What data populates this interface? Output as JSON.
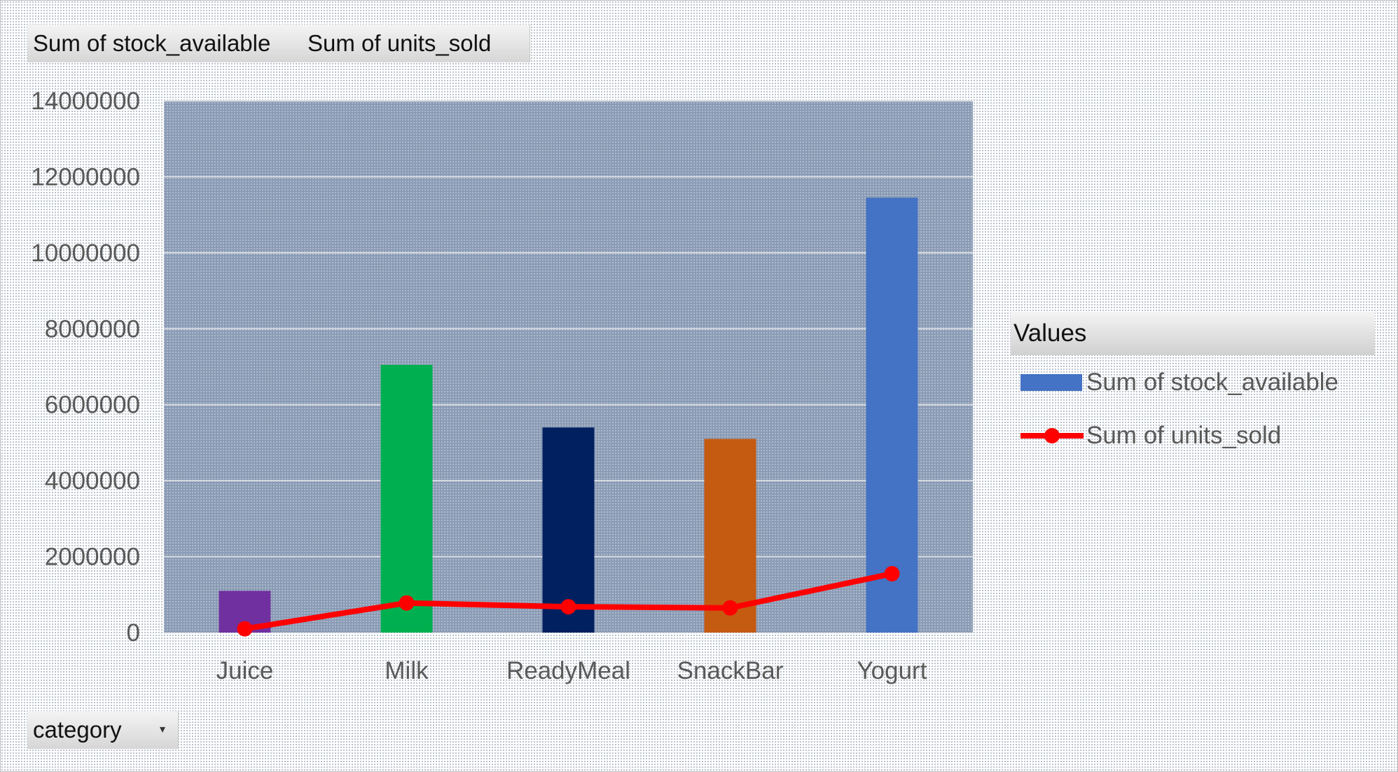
{
  "field_buttons": {
    "values_1": "Sum of stock_available",
    "values_2": "Sum of units_sold",
    "axis_field": "category",
    "dropdown_glyph": "▾"
  },
  "legend": {
    "title": "Values",
    "items": [
      "Sum of stock_available",
      "Sum of units_sold"
    ]
  },
  "colors": {
    "plot_area": "#8a9bb5",
    "gridline": "#d9dde3",
    "line": "#ff0000",
    "stock_legend": "#4472c4"
  },
  "chart_data": {
    "type": "bar",
    "categories": [
      "Juice",
      "Milk",
      "ReadyMeal",
      "SnackBar",
      "Yogurt"
    ],
    "series": [
      {
        "name": "Sum of stock_available",
        "type": "bar",
        "values": [
          1100000,
          7050000,
          5400000,
          5100000,
          11450000
        ],
        "colors": [
          "#7030a0",
          "#00b050",
          "#002060",
          "#c55a11",
          "#4472c4"
        ]
      },
      {
        "name": "Sum of units_sold",
        "type": "line",
        "values": [
          100000,
          780000,
          680000,
          650000,
          1550000
        ],
        "color": "#ff0000"
      }
    ],
    "y_ticks": [
      "0",
      "2000000",
      "4000000",
      "6000000",
      "8000000",
      "10000000",
      "12000000",
      "14000000"
    ],
    "ylim": [
      0,
      14000000
    ],
    "grid": true,
    "legend_position": "right"
  }
}
